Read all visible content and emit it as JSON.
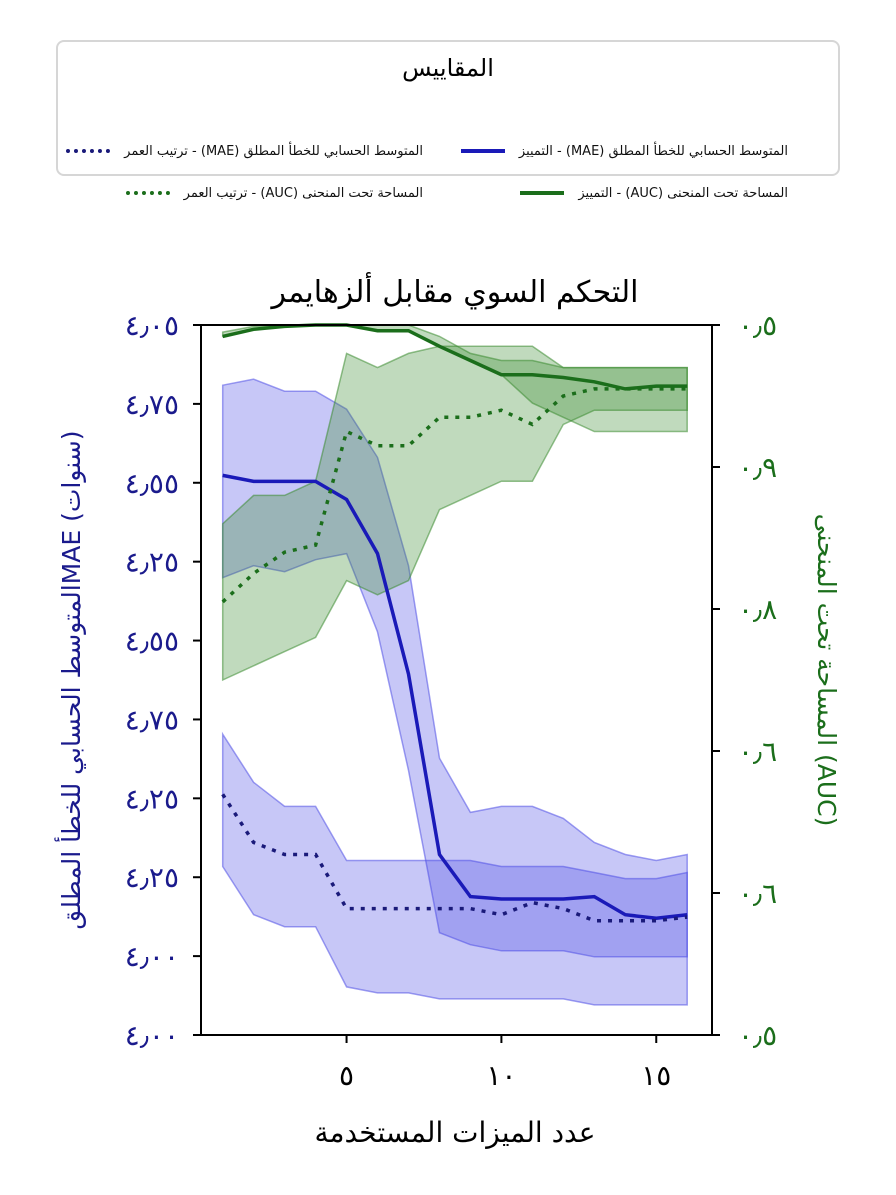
{
  "legend": {
    "title": "المقاييس",
    "items": [
      {
        "label": "المتوسط الحسابي للخطأ المطلق (MAE) - التمييز",
        "color": "#1a1ab8",
        "dash": "solid"
      },
      {
        "label": "المتوسط الحسابي للخطأ المطلق (MAE) - ترتيب العمر",
        "color": "#1a1a7a",
        "dash": "dotted"
      },
      {
        "label": "المساحة تحت المنحنى (AUC) - التمييز",
        "color": "#1b6e1b",
        "dash": "solid"
      },
      {
        "label": "المساحة تحت المنحنى (AUC) - ترتيب العمر",
        "color": "#1b6e1b",
        "dash": "dotted"
      }
    ]
  },
  "chart_data": {
    "type": "line",
    "title": "التحكم السوي مقابل ألزهايمر",
    "xlabel": "عدد الميزات المستخدمة",
    "ylabel_left": "المتوسط الحسابي للخطأ المطلقMAE (سنوات)",
    "ylabel_right": "المساحة تحت المنحنى (AUC)",
    "x_ticks": [
      {
        "value": 5,
        "label": "٥"
      },
      {
        "value": 10,
        "label": "١٠"
      },
      {
        "value": 15,
        "label": "١٥"
      }
    ],
    "xlim": [
      0.3,
      16.8
    ],
    "left_ticks": [
      "٤٫٠٥",
      "٤٫٧٥",
      "٤٫٥٥",
      "٤٫٢٥",
      "٤٫٥٥",
      "٤٫٧٥",
      "٤٫٢٥",
      "٤٫٢٥",
      "٤٫٠٠",
      "٤٫٠٠"
    ],
    "right_ticks": [
      "٠٫٥",
      "٠٫٩",
      "٠٫٨",
      "٠٫٦",
      "٠٫٦",
      "٠٫٥"
    ],
    "left_axis_color": "#1a1a8c",
    "right_axis_color": "#1b6e1b",
    "x": [
      1,
      2,
      3,
      4,
      5,
      6,
      7,
      8,
      9,
      10,
      11,
      12,
      13,
      14,
      15,
      16
    ],
    "series": [
      {
        "name": "المتوسط الحسابي للخطأ المطلق (MAE) - التمييز",
        "axis": "left",
        "color": "#1a1ab8",
        "dash": "solid",
        "values": [
          4.25,
          4.3,
          4.3,
          4.3,
          4.45,
          4.9,
          5.9,
          7.4,
          7.75,
          7.77,
          7.77,
          7.77,
          7.75,
          7.9,
          7.93,
          7.9
        ],
        "lower": [
          3.5,
          3.45,
          3.55,
          3.55,
          3.7,
          4.1,
          5.0,
          6.6,
          7.05,
          7.0,
          7.0,
          7.1,
          7.3,
          7.4,
          7.45,
          7.4
        ],
        "upper": [
          5.1,
          5.0,
          5.05,
          4.95,
          4.9,
          5.55,
          6.7,
          8.05,
          8.15,
          8.2,
          8.2,
          8.2,
          8.25,
          8.25,
          8.25,
          8.25
        ]
      },
      {
        "name": "المتوسط الحسابي للخطأ المطلق (MAE) - ترتيب العمر",
        "axis": "left",
        "color": "#1a1a7a",
        "dash": "dotted",
        "values": [
          6.9,
          7.3,
          7.4,
          7.4,
          7.85,
          7.85,
          7.85,
          7.85,
          7.85,
          7.9,
          7.8,
          7.85,
          7.95,
          7.95,
          7.95,
          7.92
        ],
        "lower": [
          6.4,
          6.8,
          7.0,
          7.0,
          7.45,
          7.45,
          7.45,
          7.45,
          7.45,
          7.5,
          7.5,
          7.5,
          7.55,
          7.6,
          7.6,
          7.55
        ],
        "upper": [
          7.5,
          7.9,
          8.0,
          8.0,
          8.5,
          8.55,
          8.55,
          8.6,
          8.6,
          8.6,
          8.6,
          8.6,
          8.65,
          8.65,
          8.65,
          8.65
        ]
      },
      {
        "name": "المساحة تحت المنحنى (AUC) - التمييز",
        "axis": "right",
        "color": "#1b6e1b",
        "dash": "solid",
        "values": [
          0.992,
          0.997,
          0.999,
          1.0,
          1.0,
          0.996,
          0.996,
          0.985,
          0.975,
          0.965,
          0.965,
          0.963,
          0.96,
          0.955,
          0.957,
          0.957
        ],
        "lower": [
          0.992,
          0.997,
          0.999,
          1.0,
          1.0,
          0.996,
          0.996,
          0.985,
          0.975,
          0.965,
          0.945,
          0.935,
          0.925,
          0.925,
          0.925,
          0.925
        ],
        "upper": [
          0.995,
          0.999,
          1.0,
          1.0,
          1.0,
          1.0,
          1.0,
          0.992,
          0.98,
          0.975,
          0.975,
          0.97,
          0.97,
          0.97,
          0.97,
          0.97
        ]
      },
      {
        "name": "المساحة تحت المنحنى (AUC) - ترتيب العمر",
        "axis": "right",
        "color": "#1b6e1b",
        "dash": "dotted",
        "values": [
          0.805,
          0.825,
          0.84,
          0.845,
          0.925,
          0.915,
          0.915,
          0.935,
          0.935,
          0.94,
          0.93,
          0.95,
          0.955,
          0.955,
          0.955,
          0.955
        ],
        "lower": [
          0.75,
          0.76,
          0.77,
          0.78,
          0.82,
          0.81,
          0.82,
          0.87,
          0.88,
          0.89,
          0.89,
          0.93,
          0.94,
          0.94,
          0.94,
          0.94
        ],
        "upper": [
          0.86,
          0.88,
          0.88,
          0.89,
          0.98,
          0.97,
          0.98,
          0.985,
          0.985,
          0.985,
          0.985,
          0.97,
          0.97,
          0.97,
          0.97,
          0.97
        ]
      }
    ]
  }
}
